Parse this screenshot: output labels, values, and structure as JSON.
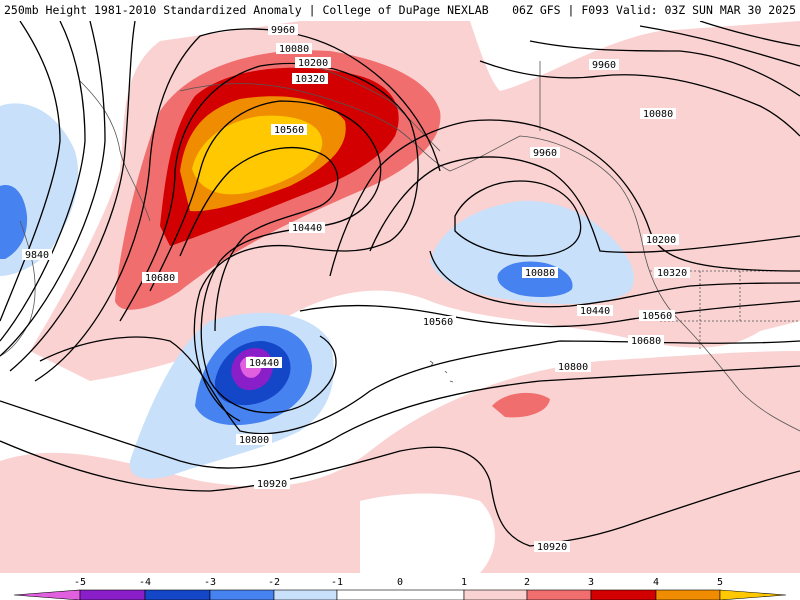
{
  "header": {
    "title_left": "250mb Height 1981-2010 Standardized Anomaly | College of DuPage NEXLAB",
    "title_right": "06Z GFS | F093 Valid: 03Z SUN MAR 30 2025"
  },
  "colors": {
    "neg5": "#e060e0",
    "neg4": "#8a1ec8",
    "neg3": "#1446c8",
    "neg2": "#4682f0",
    "neg1": "#c8e0fa",
    "pos1": "#fad2d2",
    "pos2": "#f06e6e",
    "pos3": "#d20000",
    "pos4": "#f08c00",
    "pos5": "#ffc800",
    "contour": "#000000"
  },
  "contour_labels": [
    "9960",
    "10080",
    "10200",
    "10320",
    "10560",
    "10440",
    "10680",
    "9840",
    "9960",
    "10080",
    "10200",
    "10320",
    "10440",
    "10560",
    "10680",
    "10800",
    "9960",
    "10080",
    "10560",
    "10440",
    "10800",
    "10920",
    "10920"
  ],
  "colorbar": {
    "ticks": [
      "-5",
      "-4",
      "-3",
      "-2",
      "-1",
      "0",
      "1",
      "2",
      "3",
      "4",
      "5"
    ]
  }
}
